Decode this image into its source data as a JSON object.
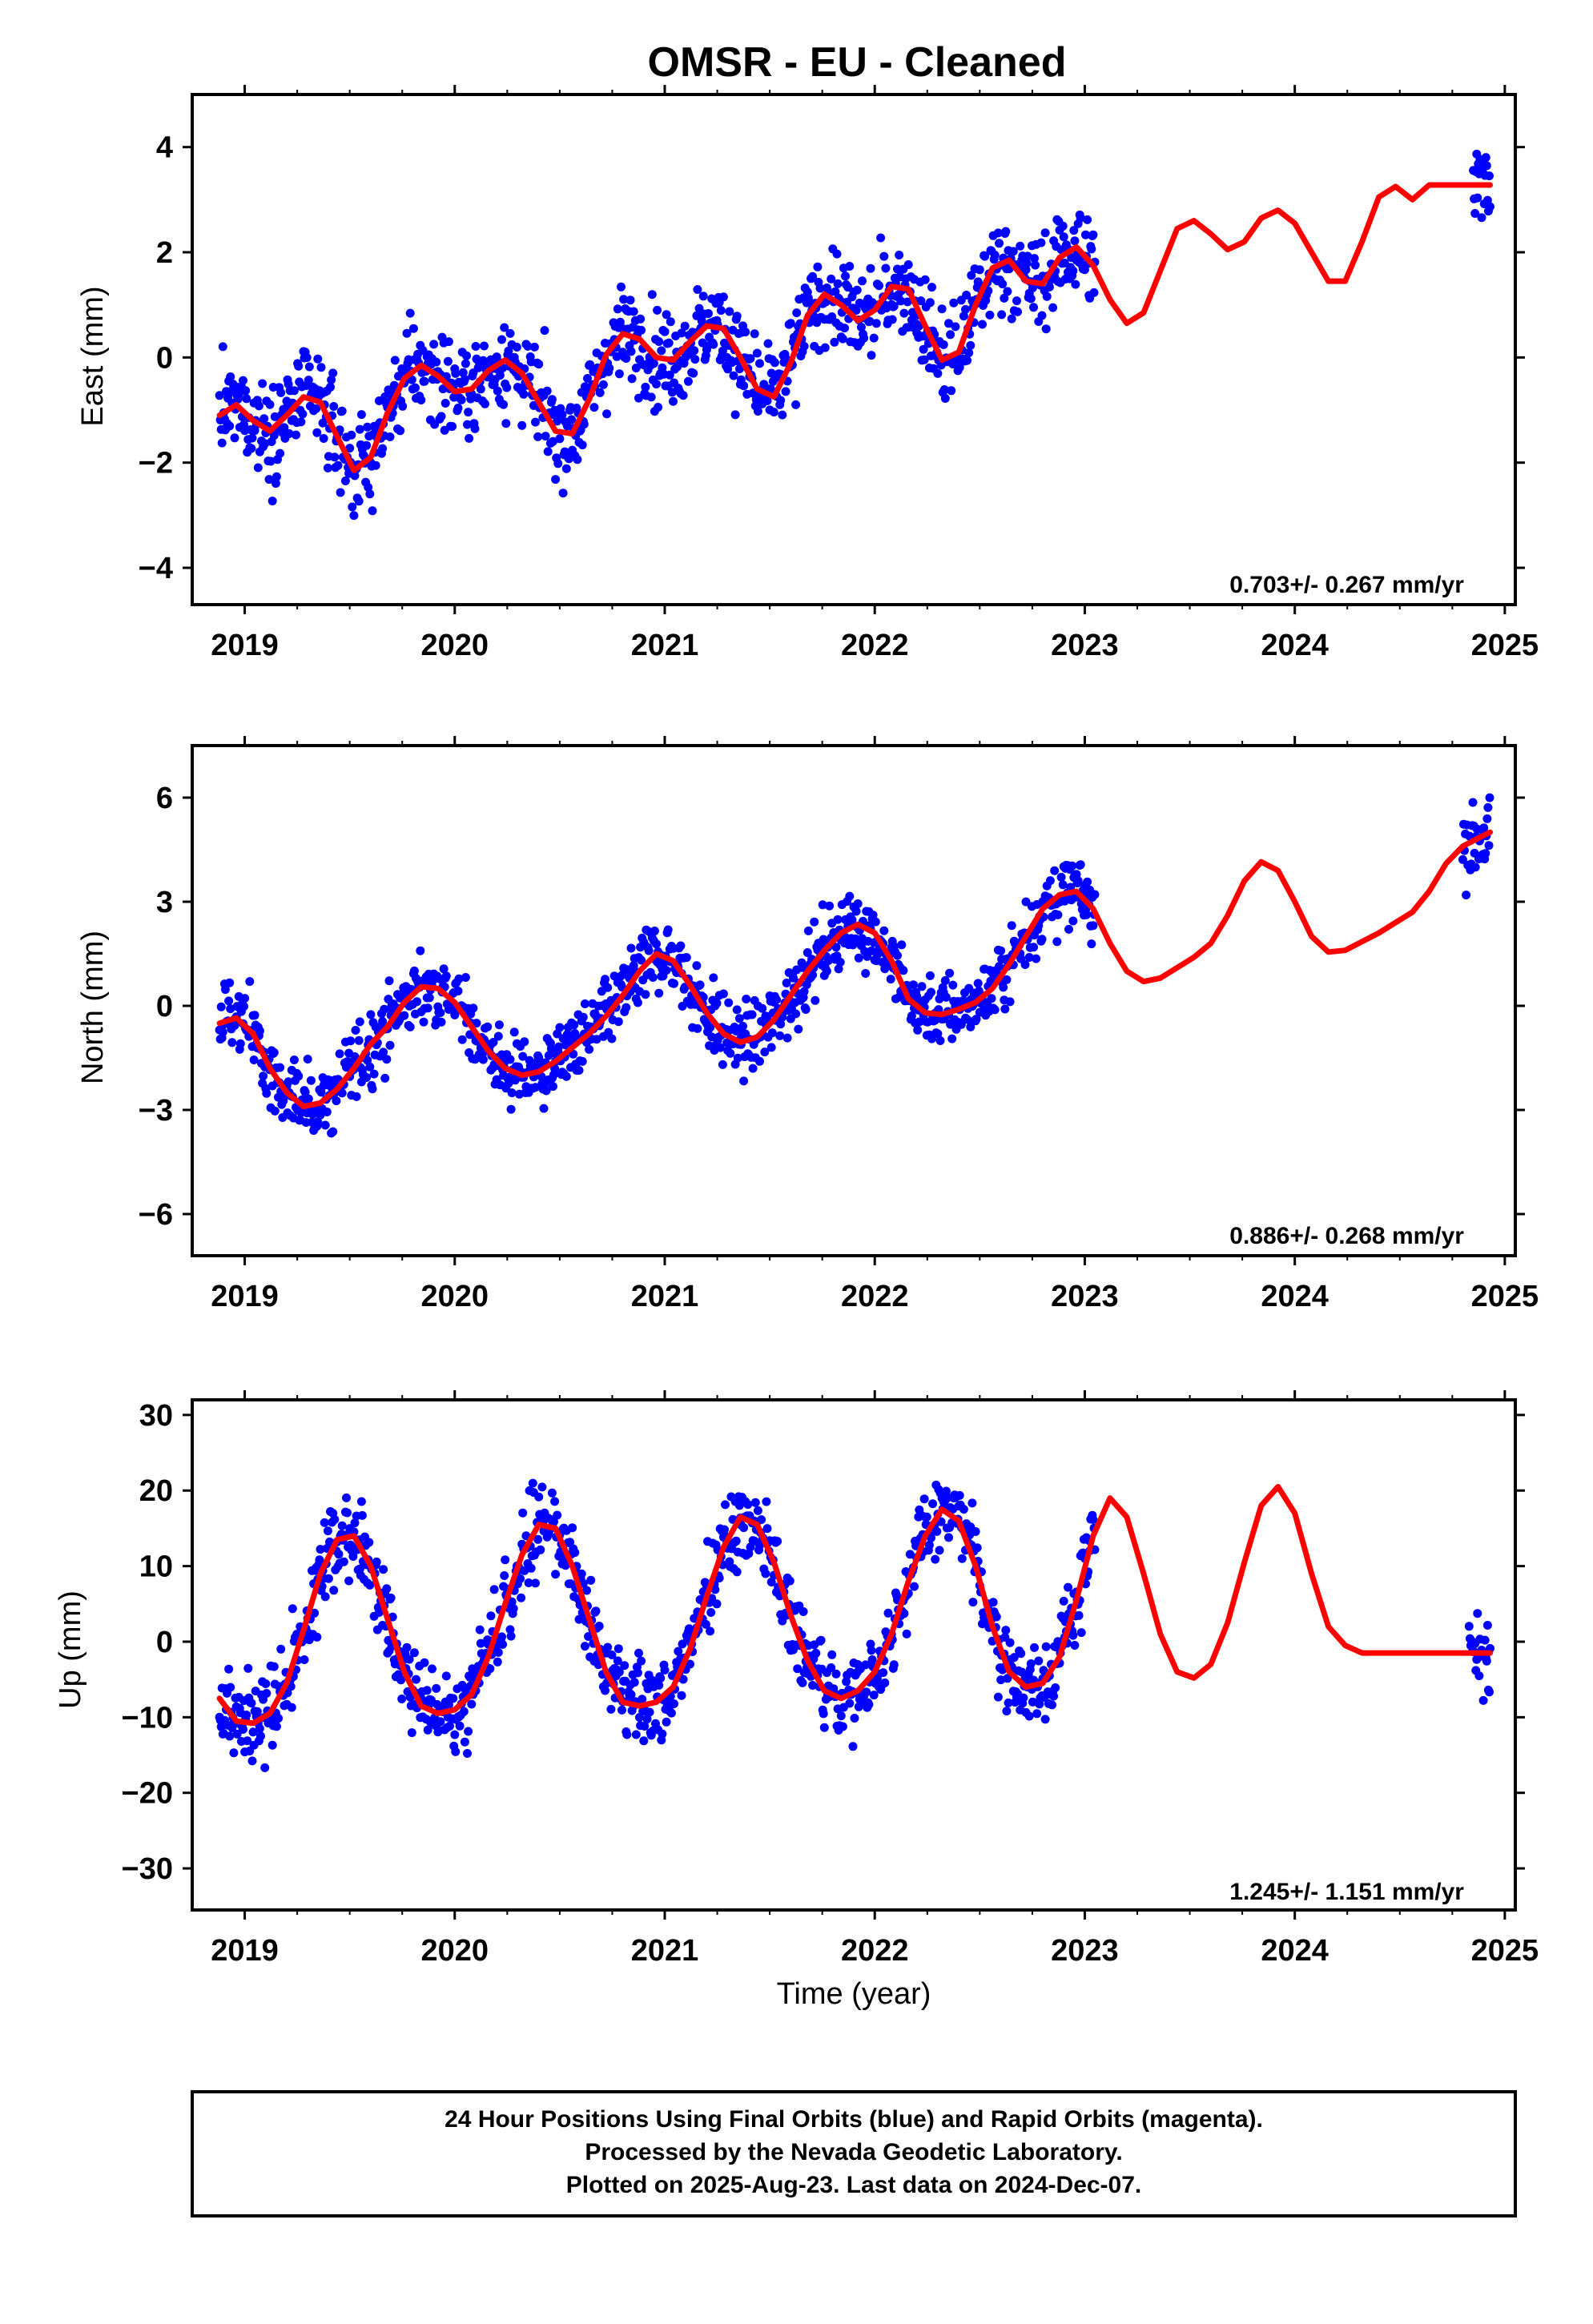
{
  "title": "OMSR  - EU - Cleaned",
  "colors": {
    "points": "#0000ff",
    "model": "#ff0000",
    "axis": "#000000"
  },
  "footer": {
    "lines": [
      "24 Hour Positions Using Final Orbits (blue) and Rapid Orbits (magenta).",
      "Processed by the Nevada Geodetic Laboratory.",
      "Plotted on 2025-Aug-23. Last data on 2024-Dec-07."
    ]
  },
  "chart_data": [
    {
      "type": "scatter",
      "name": "east",
      "ylabel": "East (mm)",
      "xlabel": "",
      "xlim": [
        2018.75,
        2025.05
      ],
      "ylim": [
        -4.7,
        5.0
      ],
      "xticks": [
        2019,
        2020,
        2021,
        2022,
        2023,
        2024,
        2025
      ],
      "yticks": [
        -4,
        -2,
        0,
        2,
        4
      ],
      "ytick_labels": [
        "−4",
        "−2",
        "0",
        "2",
        "4"
      ],
      "rate_label": "0.703+/- 0.267 mm/yr",
      "model_x": [
        2018.88,
        2018.96,
        2019.04,
        2019.12,
        2019.2,
        2019.28,
        2019.36,
        2019.44,
        2019.52,
        2019.6,
        2019.68,
        2019.76,
        2019.84,
        2019.92,
        2020.0,
        2020.08,
        2020.16,
        2020.24,
        2020.32,
        2020.4,
        2020.48,
        2020.56,
        2020.64,
        2020.72,
        2020.8,
        2020.88,
        2020.96,
        2021.04,
        2021.12,
        2021.2,
        2021.28,
        2021.36,
        2021.44,
        2021.52,
        2021.6,
        2021.68,
        2021.76,
        2021.84,
        2021.92,
        2022.0,
        2022.08,
        2022.16,
        2022.24,
        2022.32,
        2022.4,
        2022.48,
        2022.56,
        2022.64,
        2022.72,
        2022.8,
        2022.88,
        2022.96,
        2023.04,
        2023.12,
        2023.2,
        2023.28,
        2023.36,
        2023.44,
        2023.52,
        2023.6,
        2023.68,
        2023.76,
        2023.84,
        2023.92,
        2024.0,
        2024.08,
        2024.16,
        2024.24,
        2024.32,
        2024.4,
        2024.48,
        2024.56,
        2024.64,
        2024.72,
        2024.8,
        2024.88,
        2024.93
      ],
      "model_y": [
        -1.1,
        -0.9,
        -1.2,
        -1.4,
        -1.1,
        -0.75,
        -0.85,
        -1.5,
        -2.15,
        -1.9,
        -1.05,
        -0.4,
        -0.15,
        -0.35,
        -0.65,
        -0.6,
        -0.25,
        -0.05,
        -0.3,
        -0.85,
        -1.4,
        -1.45,
        -0.8,
        0.05,
        0.45,
        0.35,
        0.0,
        -0.05,
        0.3,
        0.6,
        0.55,
        0.0,
        -0.6,
        -0.75,
        -0.1,
        0.8,
        1.2,
        1.0,
        0.7,
        0.9,
        1.35,
        1.3,
        0.6,
        -0.05,
        0.1,
        1.0,
        1.7,
        1.85,
        1.45,
        1.4,
        1.9,
        2.1,
        1.75,
        1.1,
        0.65,
        0.85,
        1.65,
        2.45,
        2.6,
        2.35,
        2.05,
        2.2,
        2.65,
        2.8,
        2.55,
        2.0,
        1.45,
        1.45,
        2.2,
        3.05,
        3.25,
        3.0,
        3.28,
        3.28,
        3.28,
        3.28,
        3.28
      ],
      "points": {
        "segments": [
          {
            "x_start": 2018.88,
            "x_end": 2023.05,
            "step": 0.004
          },
          {
            "x_start": 2024.85,
            "x_end": 2024.93,
            "step": 0.004
          }
        ],
        "scatter_sd": 0.75
      }
    },
    {
      "type": "scatter",
      "name": "north",
      "ylabel": "North (mm)",
      "xlabel": "",
      "xlim": [
        2018.75,
        2025.05
      ],
      "ylim": [
        -7.2,
        7.5
      ],
      "xticks": [
        2019,
        2020,
        2021,
        2022,
        2023,
        2024,
        2025
      ],
      "yticks": [
        -6,
        -3,
        0,
        3,
        6
      ],
      "ytick_labels": [
        "−6",
        "−3",
        "0",
        "3",
        "6"
      ],
      "rate_label": "0.886+/- 0.268 mm/yr",
      "model_x": [
        2018.88,
        2018.96,
        2019.04,
        2019.12,
        2019.2,
        2019.28,
        2019.36,
        2019.44,
        2019.52,
        2019.6,
        2019.68,
        2019.76,
        2019.84,
        2019.92,
        2020.0,
        2020.08,
        2020.16,
        2020.24,
        2020.32,
        2020.4,
        2020.48,
        2020.56,
        2020.64,
        2020.72,
        2020.8,
        2020.88,
        2020.96,
        2021.04,
        2021.12,
        2021.2,
        2021.28,
        2021.36,
        2021.44,
        2021.52,
        2021.6,
        2021.68,
        2021.76,
        2021.84,
        2021.92,
        2022.0,
        2022.08,
        2022.16,
        2022.24,
        2022.32,
        2022.4,
        2022.48,
        2022.56,
        2022.64,
        2022.72,
        2022.8,
        2022.88,
        2022.96,
        2023.04,
        2023.12,
        2023.2,
        2023.28,
        2023.36,
        2023.44,
        2023.52,
        2023.6,
        2023.68,
        2023.76,
        2023.84,
        2023.92,
        2024.0,
        2024.08,
        2024.16,
        2024.24,
        2024.32,
        2024.4,
        2024.48,
        2024.56,
        2024.64,
        2024.72,
        2024.8,
        2024.88,
        2024.93
      ],
      "model_y": [
        -0.5,
        -0.35,
        -0.8,
        -1.8,
        -2.5,
        -2.9,
        -2.8,
        -2.4,
        -1.8,
        -1.1,
        -0.6,
        0.1,
        0.55,
        0.5,
        0.1,
        -0.6,
        -1.3,
        -1.8,
        -2.0,
        -1.9,
        -1.6,
        -1.2,
        -0.8,
        -0.3,
        0.3,
        1.0,
        1.5,
        1.3,
        0.6,
        -0.2,
        -0.8,
        -1.05,
        -0.9,
        -0.4,
        0.3,
        1.0,
        1.6,
        2.1,
        2.35,
        2.1,
        1.3,
        0.2,
        -0.2,
        -0.25,
        -0.1,
        0.1,
        0.5,
        1.2,
        2.0,
        2.8,
        3.2,
        3.3,
        2.8,
        1.8,
        1.0,
        0.7,
        0.8,
        1.1,
        1.4,
        1.8,
        2.6,
        3.6,
        4.15,
        3.9,
        3.0,
        2.0,
        1.55,
        1.6,
        1.85,
        2.1,
        2.4,
        2.7,
        3.3,
        4.1,
        4.6,
        4.85,
        5.0
      ],
      "points": {
        "segments": [
          {
            "x_start": 2018.88,
            "x_end": 2023.05,
            "step": 0.004
          },
          {
            "x_start": 2024.8,
            "x_end": 2024.93,
            "step": 0.004
          }
        ],
        "scatter_sd": 0.85
      }
    },
    {
      "type": "scatter",
      "name": "up",
      "ylabel": "Up (mm)",
      "xlabel": "Time (year)",
      "xlim": [
        2018.75,
        2025.05
      ],
      "ylim": [
        -35.5,
        32.0
      ],
      "xticks": [
        2019,
        2020,
        2021,
        2022,
        2023,
        2024,
        2025
      ],
      "yticks": [
        -30,
        -20,
        -10,
        0,
        10,
        20,
        30
      ],
      "ytick_labels": [
        "−30",
        "−20",
        "−10",
        "0",
        "10",
        "20",
        "30"
      ],
      "rate_label": "1.245+/- 1.151 mm/yr",
      "model_x": [
        2018.88,
        2018.96,
        2019.04,
        2019.12,
        2019.2,
        2019.28,
        2019.36,
        2019.44,
        2019.52,
        2019.6,
        2019.68,
        2019.76,
        2019.84,
        2019.92,
        2020.0,
        2020.08,
        2020.16,
        2020.24,
        2020.32,
        2020.4,
        2020.48,
        2020.56,
        2020.64,
        2020.72,
        2020.8,
        2020.88,
        2020.96,
        2021.04,
        2021.12,
        2021.2,
        2021.28,
        2021.36,
        2021.44,
        2021.52,
        2021.6,
        2021.68,
        2021.76,
        2021.84,
        2021.92,
        2022.0,
        2022.08,
        2022.16,
        2022.24,
        2022.32,
        2022.4,
        2022.48,
        2022.56,
        2022.64,
        2022.72,
        2022.8,
        2022.88,
        2022.96,
        2023.04,
        2023.12,
        2023.2,
        2023.28,
        2023.36,
        2023.44,
        2023.52,
        2023.6,
        2023.68,
        2023.76,
        2023.84,
        2023.92,
        2024.0,
        2024.08,
        2024.16,
        2024.24,
        2024.32,
        2024.4,
        2024.48,
        2024.56,
        2024.64,
        2024.72,
        2024.8,
        2024.88,
        2024.93
      ],
      "model_y": [
        -7.5,
        -10.5,
        -10.8,
        -9.5,
        -5.5,
        1.5,
        9.0,
        13.5,
        14.0,
        10.0,
        3.0,
        -4.0,
        -8.5,
        -9.5,
        -9.0,
        -7.0,
        -2.0,
        5.0,
        11.5,
        15.5,
        15.0,
        10.0,
        3.0,
        -4.0,
        -8.0,
        -8.5,
        -8.0,
        -6.0,
        -1.0,
        6.0,
        12.5,
        16.5,
        15.5,
        10.5,
        3.5,
        -2.5,
        -6.5,
        -7.5,
        -6.5,
        -4.0,
        1.0,
        8.0,
        14.0,
        17.5,
        16.0,
        10.0,
        2.0,
        -4.0,
        -6.0,
        -5.5,
        -2.0,
        5.5,
        14.0,
        19.0,
        16.5,
        9.0,
        1.0,
        -4.0,
        -4.8,
        -3.0,
        2.5,
        10.5,
        18.0,
        20.5,
        17.0,
        9.0,
        2.0,
        -0.5,
        -1.5,
        -1.5,
        -1.5,
        -1.5,
        -1.5,
        -1.5,
        -1.5,
        -1.5,
        -1.5
      ],
      "points": {
        "segments": [
          {
            "x_start": 2018.88,
            "x_end": 2023.05,
            "step": 0.004
          },
          {
            "x_start": 2024.83,
            "x_end": 2024.93,
            "step": 0.004
          }
        ],
        "scatter_sd": 4.5
      }
    }
  ]
}
